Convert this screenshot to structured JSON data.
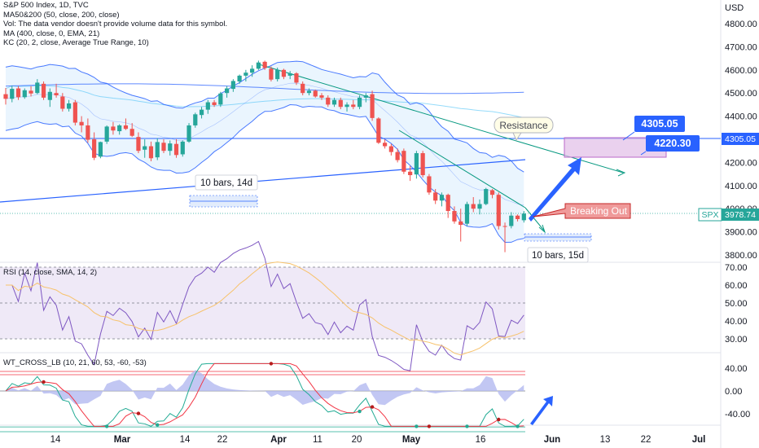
{
  "colors": {
    "up": "#26a69a",
    "down": "#ef5350",
    "ma50": "#2962ff",
    "ma200": "#7a4fc0",
    "ema400": "#4fc3f7",
    "kc_band": "#2962ff",
    "kc_fill": "#e3f2fd",
    "rsi_line": "#7e57c2",
    "rsi_ma": "#f7c26b",
    "rsi_bg": "#ede7f6",
    "wt_red": "#f23645",
    "wt_green": "#22ab94",
    "wt_hist": "#b3b9f0",
    "accent_blue": "#2962ff",
    "resistance_line": "#2962ff"
  },
  "legend": {
    "main": [
      "S&P 500 Index, 1D, TVC",
      "MA50&200 (50, close, 200, close)",
      "Vol: The data vendor doesn't provide volume data for this symbol.",
      "MA (400, close, 0, EMA, 21)",
      "KC (20, 2, close, Average True Range, 10)"
    ],
    "rsi": "RSI (14, close, SMA, 14, 2)",
    "wt": "WT_CROSS_LB (10, 21, 60, 53, -60, -53)"
  },
  "axis": {
    "currency": "USD",
    "price_ticks": [
      "4800.00",
      "4700.00",
      "4600.00",
      "4500.00",
      "4400.00",
      "4200.00",
      "4100.00",
      "4000.00",
      "3900.00",
      "3800.00"
    ],
    "rsi_ticks": [
      "70.00",
      "60.00",
      "50.00",
      "40.00",
      "30.00"
    ],
    "wt_ticks": [
      "40.00",
      "0.00",
      "-40.00"
    ],
    "date_ticks": [
      "14",
      "Mar",
      "14",
      "22",
      "Apr",
      "11",
      "20",
      "May",
      "16",
      "Jun",
      "13",
      "22",
      "Jul"
    ]
  },
  "price_tags": {
    "resistance_level": "4305.05",
    "symbol": "SPX",
    "last": "3978.74"
  },
  "annotations": {
    "resistance": "Resistance",
    "breaking_out": "Breaking Out",
    "target_high": "4305.05",
    "target_low": "4220.30",
    "range1": "10 bars, 14d",
    "range2": "10 bars, 15d"
  },
  "chart_data": {
    "type": "candlestick",
    "title": "S&P 500 Index, 1D, TVC",
    "ylabel": "USD",
    "ylim": [
      3770,
      4860
    ],
    "resistance_level": 4305.05,
    "last_price": 3978.74,
    "candles": [
      {
        "o": 4495,
        "h": 4522,
        "l": 4450,
        "c": 4475
      },
      {
        "o": 4475,
        "h": 4532,
        "l": 4460,
        "c": 4518
      },
      {
        "o": 4520,
        "h": 4530,
        "l": 4470,
        "c": 4482
      },
      {
        "o": 4482,
        "h": 4520,
        "l": 4475,
        "c": 4512
      },
      {
        "o": 4510,
        "h": 4530,
        "l": 4485,
        "c": 4498
      },
      {
        "o": 4500,
        "h": 4560,
        "l": 4495,
        "c": 4545
      },
      {
        "o": 4540,
        "h": 4550,
        "l": 4470,
        "c": 4480
      },
      {
        "o": 4470,
        "h": 4520,
        "l": 4440,
        "c": 4505
      },
      {
        "o": 4500,
        "h": 4540,
        "l": 4480,
        "c": 4490
      },
      {
        "o": 4485,
        "h": 4500,
        "l": 4420,
        "c": 4432
      },
      {
        "o": 4432,
        "h": 4470,
        "l": 4420,
        "c": 4455
      },
      {
        "o": 4460,
        "h": 4470,
        "l": 4360,
        "c": 4372
      },
      {
        "o": 4375,
        "h": 4400,
        "l": 4330,
        "c": 4360
      },
      {
        "o": 4360,
        "h": 4390,
        "l": 4285,
        "c": 4298
      },
      {
        "o": 4300,
        "h": 4330,
        "l": 4210,
        "c": 4220
      },
      {
        "o": 4225,
        "h": 4290,
        "l": 4218,
        "c": 4288
      },
      {
        "o": 4290,
        "h": 4360,
        "l": 4280,
        "c": 4355
      },
      {
        "o": 4355,
        "h": 4375,
        "l": 4320,
        "c": 4338
      },
      {
        "o": 4335,
        "h": 4365,
        "l": 4320,
        "c": 4360
      },
      {
        "o": 4360,
        "h": 4390,
        "l": 4340,
        "c": 4345
      },
      {
        "o": 4345,
        "h": 4370,
        "l": 4310,
        "c": 4315
      },
      {
        "o": 4310,
        "h": 4330,
        "l": 4240,
        "c": 4250
      },
      {
        "o": 4255,
        "h": 4300,
        "l": 4220,
        "c": 4270
      },
      {
        "o": 4270,
        "h": 4290,
        "l": 4205,
        "c": 4218
      },
      {
        "o": 4222,
        "h": 4305,
        "l": 4210,
        "c": 4288
      },
      {
        "o": 4285,
        "h": 4300,
        "l": 4240,
        "c": 4250
      },
      {
        "o": 4250,
        "h": 4295,
        "l": 4230,
        "c": 4282
      },
      {
        "o": 4280,
        "h": 4300,
        "l": 4220,
        "c": 4232
      },
      {
        "o": 4235,
        "h": 4295,
        "l": 4225,
        "c": 4290
      },
      {
        "o": 4290,
        "h": 4370,
        "l": 4285,
        "c": 4360
      },
      {
        "o": 4360,
        "h": 4415,
        "l": 4350,
        "c": 4408
      },
      {
        "o": 4405,
        "h": 4440,
        "l": 4390,
        "c": 4428
      },
      {
        "o": 4428,
        "h": 4470,
        "l": 4410,
        "c": 4460
      },
      {
        "o": 4460,
        "h": 4470,
        "l": 4440,
        "c": 4448
      },
      {
        "o": 4450,
        "h": 4505,
        "l": 4440,
        "c": 4498
      },
      {
        "o": 4500,
        "h": 4530,
        "l": 4480,
        "c": 4520
      },
      {
        "o": 4518,
        "h": 4560,
        "l": 4505,
        "c": 4552
      },
      {
        "o": 4550,
        "h": 4580,
        "l": 4540,
        "c": 4575
      },
      {
        "o": 4575,
        "h": 4600,
        "l": 4550,
        "c": 4588
      },
      {
        "o": 4588,
        "h": 4620,
        "l": 4570,
        "c": 4605
      },
      {
        "o": 4605,
        "h": 4640,
        "l": 4600,
        "c": 4632
      },
      {
        "o": 4635,
        "h": 4640,
        "l": 4600,
        "c": 4608
      },
      {
        "o": 4605,
        "h": 4615,
        "l": 4550,
        "c": 4558
      },
      {
        "o": 4560,
        "h": 4610,
        "l": 4550,
        "c": 4600
      },
      {
        "o": 4600,
        "h": 4605,
        "l": 4560,
        "c": 4570
      },
      {
        "o": 4575,
        "h": 4595,
        "l": 4560,
        "c": 4585
      },
      {
        "o": 4585,
        "h": 4590,
        "l": 4535,
        "c": 4545
      },
      {
        "o": 4540,
        "h": 4550,
        "l": 4490,
        "c": 4500
      },
      {
        "o": 4500,
        "h": 4520,
        "l": 4490,
        "c": 4510
      },
      {
        "o": 4510,
        "h": 4515,
        "l": 4480,
        "c": 4485
      },
      {
        "o": 4490,
        "h": 4500,
        "l": 4470,
        "c": 4480
      },
      {
        "o": 4480,
        "h": 4490,
        "l": 4440,
        "c": 4450
      },
      {
        "o": 4450,
        "h": 4480,
        "l": 4440,
        "c": 4470
      },
      {
        "o": 4470,
        "h": 4480,
        "l": 4430,
        "c": 4440
      },
      {
        "o": 4440,
        "h": 4460,
        "l": 4420,
        "c": 4450
      },
      {
        "o": 4450,
        "h": 4470,
        "l": 4430,
        "c": 4440
      },
      {
        "o": 4440,
        "h": 4490,
        "l": 4430,
        "c": 4480
      },
      {
        "o": 4480,
        "h": 4500,
        "l": 4460,
        "c": 4490
      },
      {
        "o": 4495,
        "h": 4510,
        "l": 4380,
        "c": 4392
      },
      {
        "o": 4390,
        "h": 4395,
        "l": 4280,
        "c": 4285
      },
      {
        "o": 4285,
        "h": 4300,
        "l": 4260,
        "c": 4270
      },
      {
        "o": 4270,
        "h": 4280,
        "l": 4230,
        "c": 4245
      },
      {
        "o": 4245,
        "h": 4260,
        "l": 4200,
        "c": 4210
      },
      {
        "o": 4250,
        "h": 4260,
        "l": 4150,
        "c": 4160
      },
      {
        "o": 4160,
        "h": 4185,
        "l": 4120,
        "c": 4145
      },
      {
        "o": 4148,
        "h": 4250,
        "l": 4130,
        "c": 4240
      },
      {
        "o": 4240,
        "h": 4250,
        "l": 4135,
        "c": 4145
      },
      {
        "o": 4140,
        "h": 4150,
        "l": 4060,
        "c": 4070
      },
      {
        "o": 4070,
        "h": 4085,
        "l": 4020,
        "c": 4035
      },
      {
        "o": 4035,
        "h": 4070,
        "l": 4010,
        "c": 4060
      },
      {
        "o": 4060,
        "h": 4065,
        "l": 3960,
        "c": 3990
      },
      {
        "o": 3990,
        "h": 4010,
        "l": 3935,
        "c": 3945
      },
      {
        "o": 3945,
        "h": 4000,
        "l": 3858,
        "c": 3930
      },
      {
        "o": 3935,
        "h": 4030,
        "l": 3925,
        "c": 4020
      },
      {
        "o": 4020,
        "h": 4050,
        "l": 3985,
        "c": 4000
      },
      {
        "o": 4000,
        "h": 4040,
        "l": 3975,
        "c": 4020
      },
      {
        "o": 4020,
        "h": 4090,
        "l": 4015,
        "c": 4085
      },
      {
        "o": 4080,
        "h": 4085,
        "l": 4045,
        "c": 4060
      },
      {
        "o": 4060,
        "h": 4070,
        "l": 3910,
        "c": 3925
      },
      {
        "o": 3925,
        "h": 3940,
        "l": 3812,
        "c": 3922
      },
      {
        "o": 3925,
        "h": 3985,
        "l": 3915,
        "c": 3970
      },
      {
        "o": 3970,
        "h": 3975,
        "l": 3945,
        "c": 3955
      },
      {
        "o": 3950,
        "h": 3990,
        "l": 3940,
        "c": 3978.74
      }
    ]
  }
}
